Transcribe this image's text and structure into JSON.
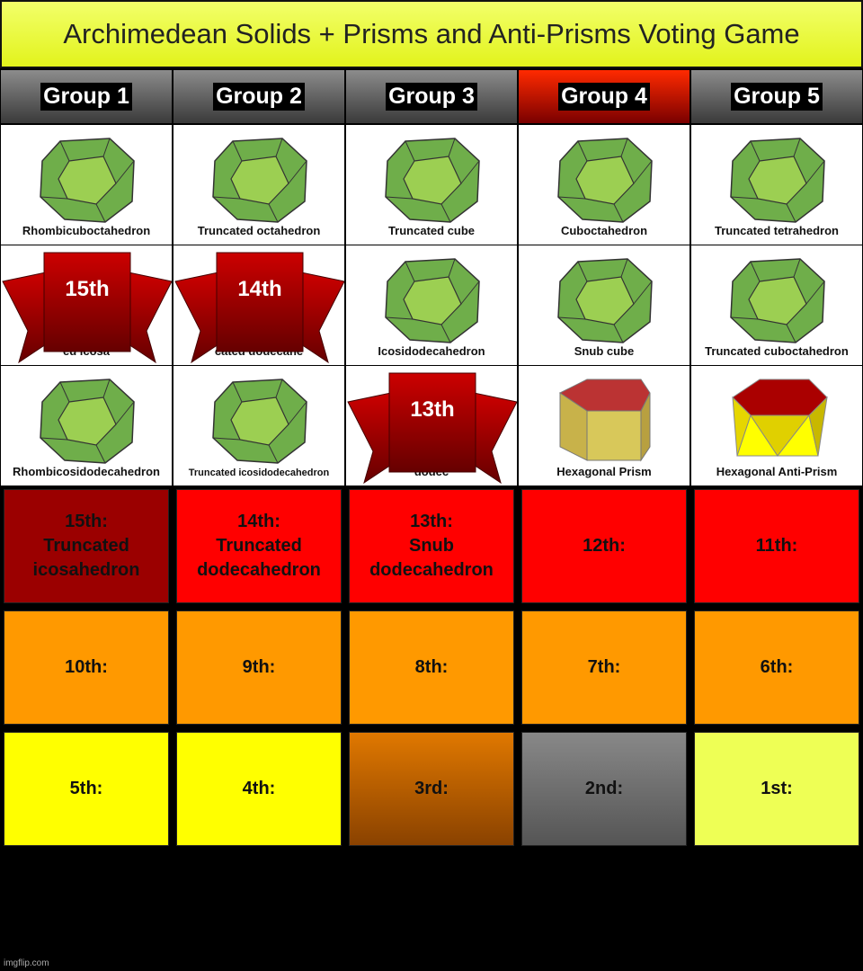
{
  "title": "Archimedean Solids + Prisms and Anti-Prisms Voting Game",
  "groups": [
    {
      "label": "Group 1",
      "active": false
    },
    {
      "label": "Group 2",
      "active": false
    },
    {
      "label": "Group 3",
      "active": false
    },
    {
      "label": "Group 4",
      "active": true
    },
    {
      "label": "Group 5",
      "active": false
    }
  ],
  "solids": [
    {
      "label": "Rhombicuboctahedron",
      "eliminated_rank": ""
    },
    {
      "label": "Truncated octahedron",
      "eliminated_rank": ""
    },
    {
      "label": "Truncated cube",
      "eliminated_rank": ""
    },
    {
      "label": "Cuboctahedron",
      "eliminated_rank": ""
    },
    {
      "label": "Truncated tetrahedron",
      "eliminated_rank": ""
    },
    {
      "label": "ed icosa",
      "eliminated_rank": "15th"
    },
    {
      "label": "cated dodecahe",
      "eliminated_rank": "14th"
    },
    {
      "label": "Icosidodecahedron",
      "eliminated_rank": ""
    },
    {
      "label": "Snub cube",
      "eliminated_rank": ""
    },
    {
      "label": "Truncated cuboctahedron",
      "eliminated_rank": ""
    },
    {
      "label": "Rhombicosidodecahedron",
      "eliminated_rank": ""
    },
    {
      "label": "Truncated icosidodecahedron",
      "eliminated_rank": ""
    },
    {
      "label": "dodec",
      "eliminated_rank": "13th"
    },
    {
      "label": "Hexagonal Prism",
      "eliminated_rank": ""
    },
    {
      "label": "Hexagonal Anti-Prism",
      "eliminated_rank": ""
    }
  ],
  "rankings": [
    {
      "text": "15th:\nTruncated\nicosahedron",
      "color": "#9b0000"
    },
    {
      "text": "14th:\nTruncated\ndodecahedron",
      "color": "#ff0000"
    },
    {
      "text": "13th:\nSnub\ndodecahedron",
      "color": "#ff0000"
    },
    {
      "text": "12th:",
      "color": "#ff0000"
    },
    {
      "text": "11th:",
      "color": "#ff0000"
    },
    {
      "text": "10th:",
      "color": "#ff9900"
    },
    {
      "text": "9th:",
      "color": "#ff9900"
    },
    {
      "text": "8th:",
      "color": "#ff9900"
    },
    {
      "text": "7th:",
      "color": "#ff9900"
    },
    {
      "text": "6th:",
      "color": "#ff9900"
    },
    {
      "text": "5th:",
      "color": "#ffff00"
    },
    {
      "text": "4th:",
      "color": "#ffff00"
    },
    {
      "text": "3rd:",
      "color": "#c96b00"
    },
    {
      "text": "2nd:",
      "color": "#777777"
    },
    {
      "text": "1st:",
      "color": "#eeff55"
    }
  ],
  "watermark": "imgflip.com"
}
